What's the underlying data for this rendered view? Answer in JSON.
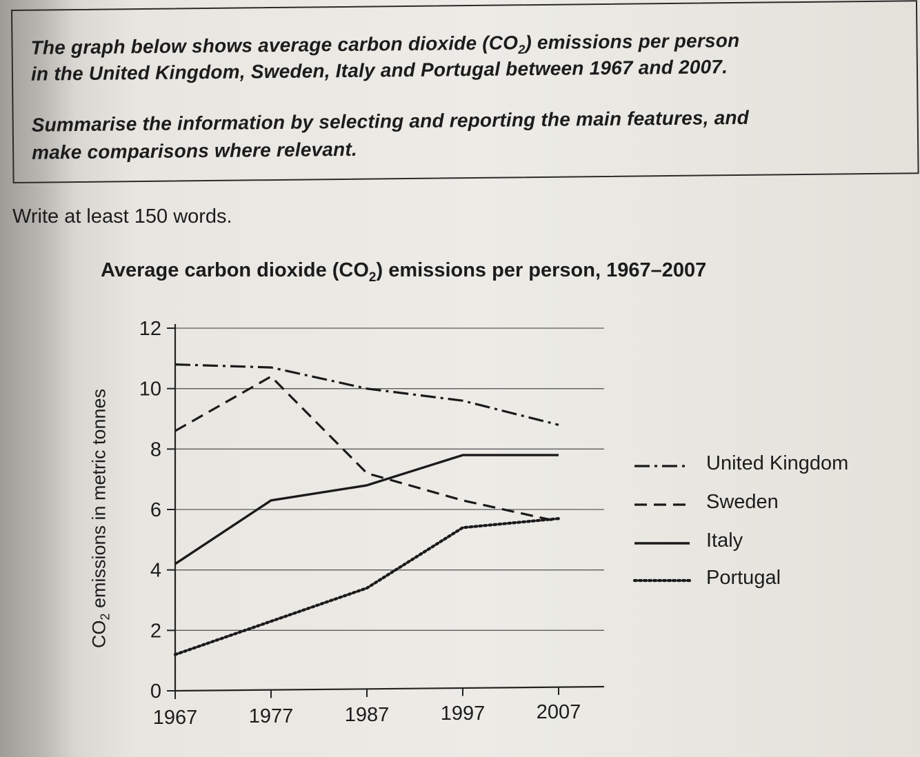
{
  "prompt": {
    "line1": "The graph below shows average carbon dioxide (CO",
    "line1_sub": "2",
    "line1_end": ") emissions per person",
    "line2": "in the United Kingdom, Sweden, Italy and Portugal between 1967 and 2007.",
    "line3": "Summarise the information by selecting and reporting the main features, and",
    "line4": "make comparisons where relevant."
  },
  "instruction": "Write at least 150 words.",
  "chart_data": {
    "type": "line",
    "title": "Average carbon dioxide (CO₂) emissions per person, 1967–2007",
    "title_parts": {
      "pre": "Average carbon dioxide (CO",
      "sub": "2",
      "post": ") emissions per person, 1967–2007"
    },
    "ylabel": "CO₂ emissions in metric tonnes",
    "ylabel_parts": {
      "pre": "CO",
      "sub": "2",
      "post": " emissions in metric tonnes"
    },
    "xlabel": "",
    "x": [
      "1967",
      "1977",
      "1987",
      "1997",
      "2007"
    ],
    "ylim": [
      0,
      12
    ],
    "yticks": [
      0,
      2,
      4,
      6,
      8,
      10,
      12
    ],
    "grid": "horizontal",
    "legend": "right",
    "series": [
      {
        "name": "United Kingdom",
        "style": "dash-dot",
        "values": [
          10.8,
          10.7,
          10.0,
          9.6,
          8.8
        ]
      },
      {
        "name": "Sweden",
        "style": "dashed",
        "values": [
          8.6,
          10.4,
          7.2,
          6.3,
          5.6
        ]
      },
      {
        "name": "Italy",
        "style": "solid",
        "values": [
          4.2,
          6.3,
          6.8,
          7.8,
          7.8
        ]
      },
      {
        "name": "Portugal",
        "style": "dotted",
        "values": [
          1.2,
          2.3,
          3.4,
          5.4,
          5.7
        ]
      }
    ]
  }
}
